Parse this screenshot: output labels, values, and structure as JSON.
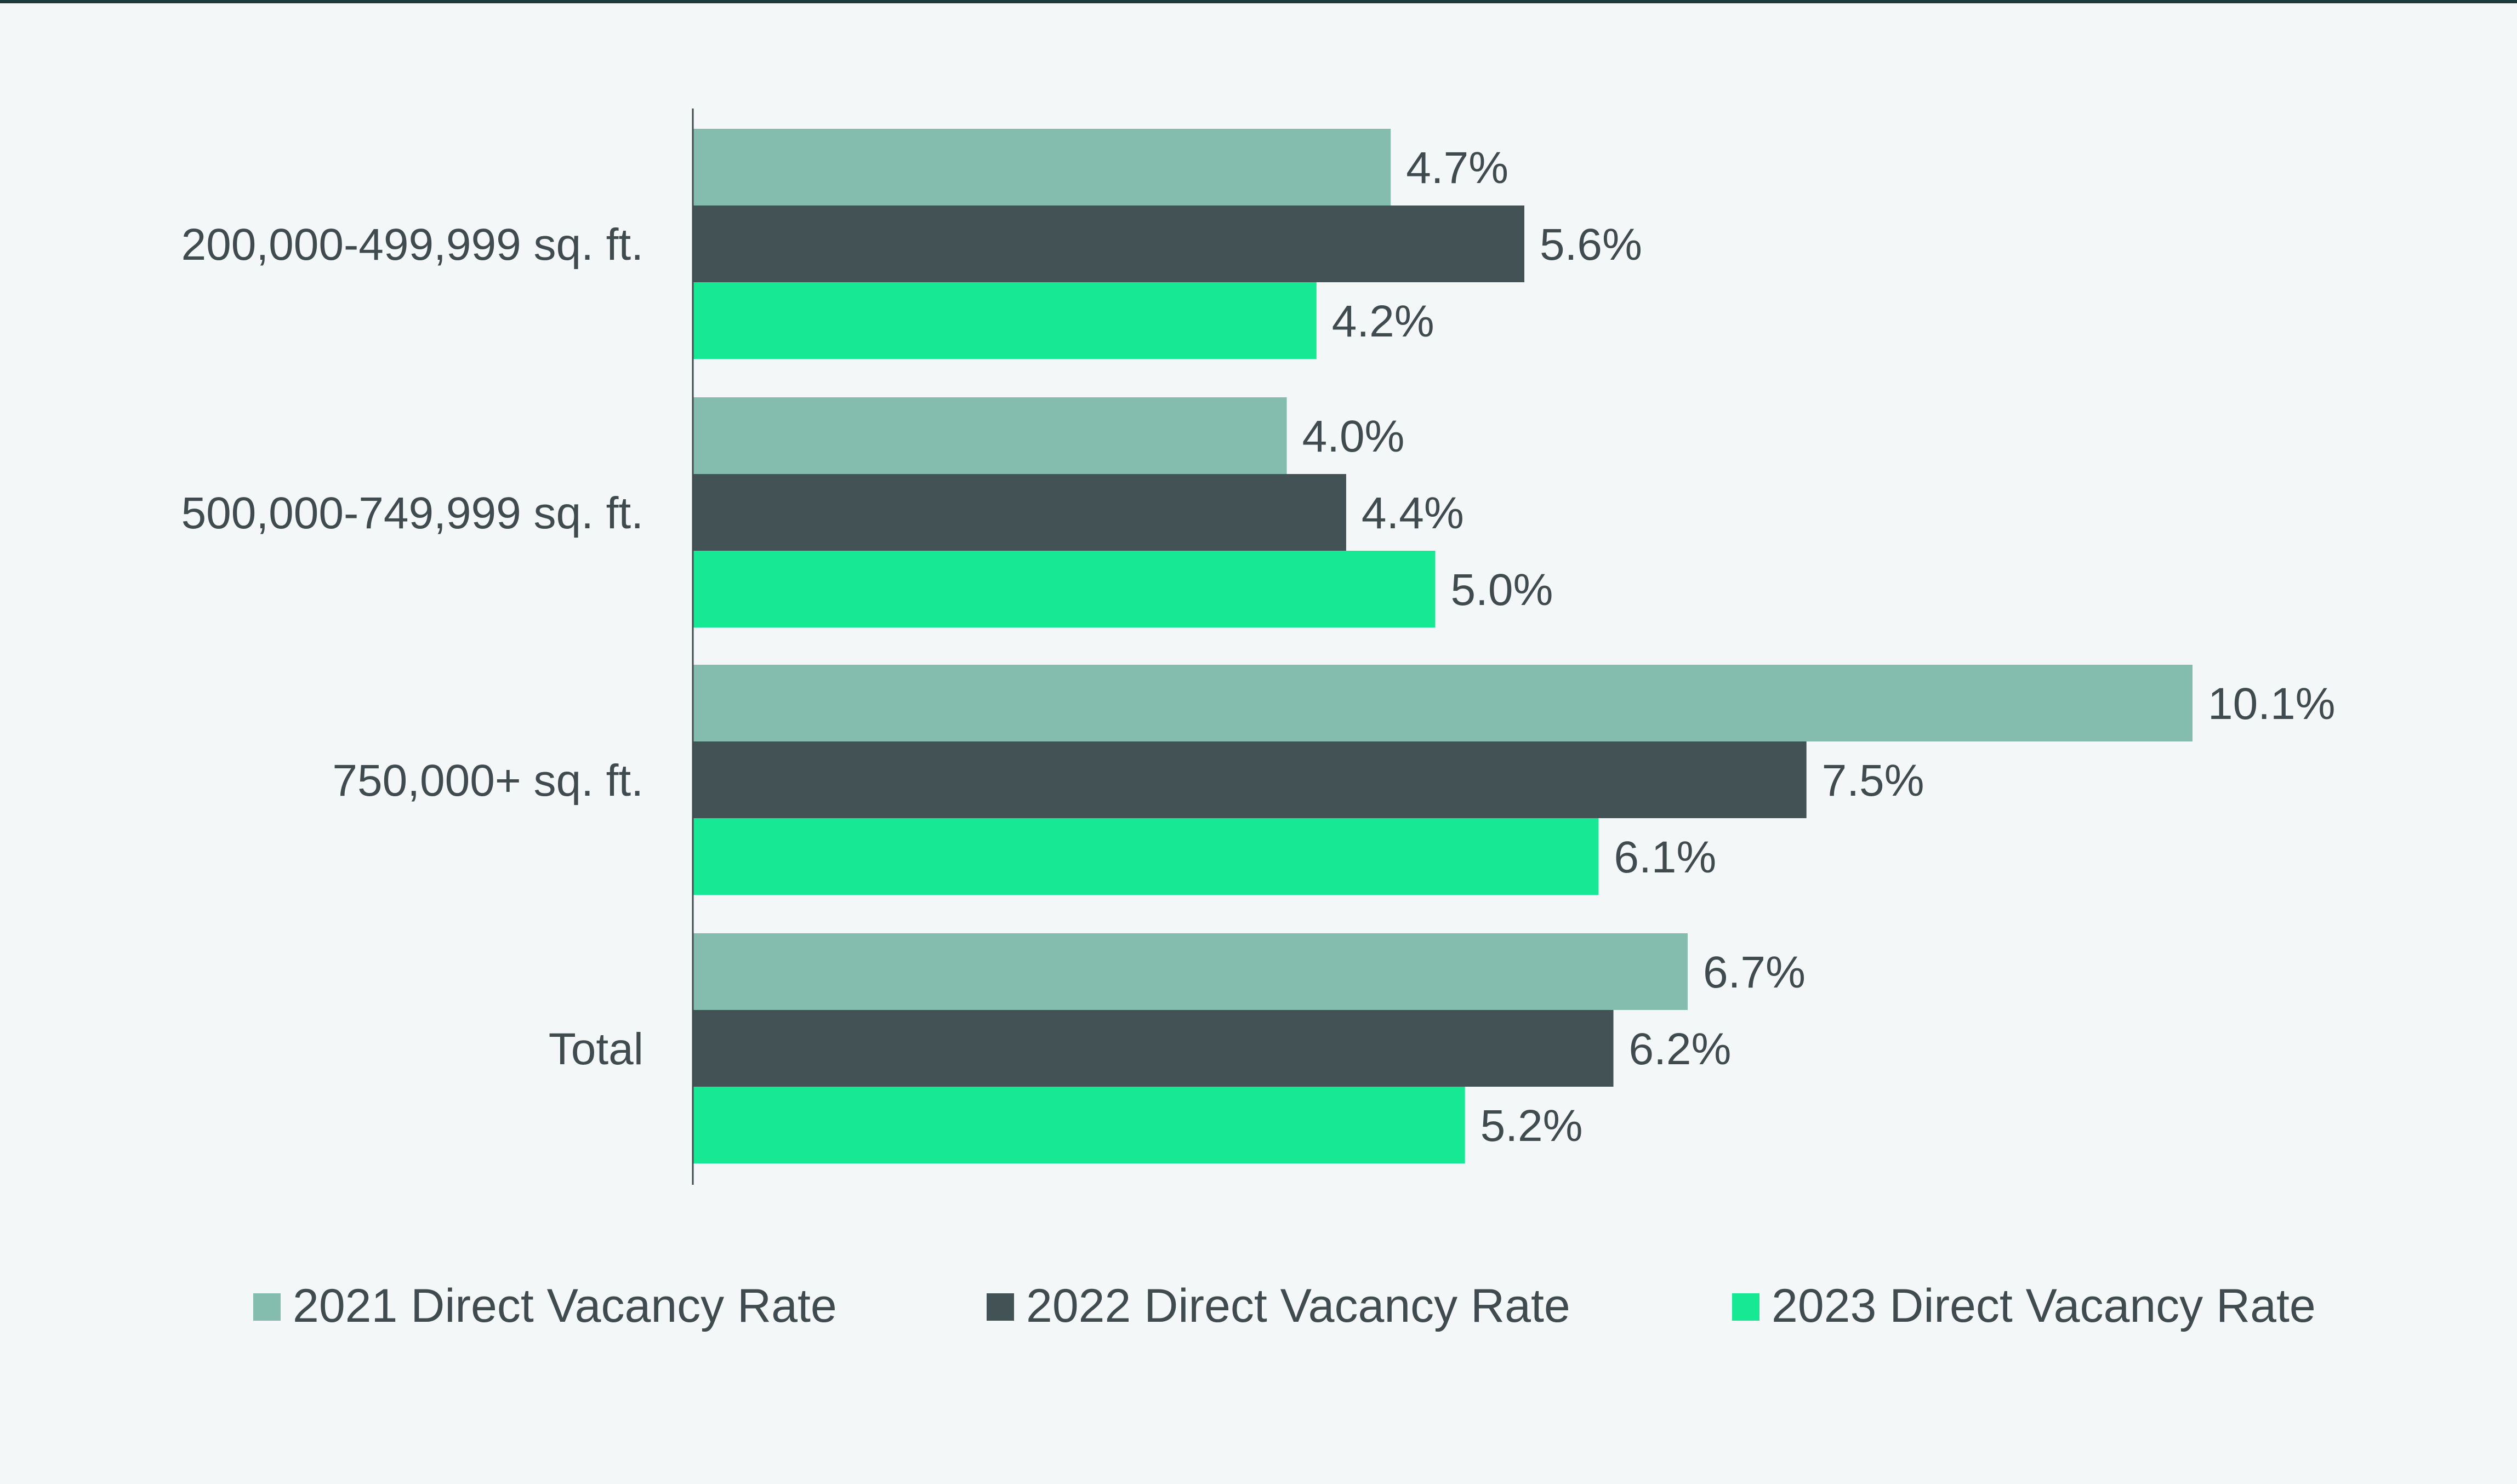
{
  "chart_data": {
    "type": "bar",
    "orientation": "horizontal",
    "categories": [
      "200,000-499,999 sq. ft.",
      "500,000-749,999 sq. ft.",
      "750,000+ sq. ft.",
      "Total"
    ],
    "series": [
      {
        "name": "2021 Direct Vacancy Rate",
        "color": "#84bcad",
        "values": [
          4.7,
          4.0,
          10.1,
          6.7
        ],
        "labels": [
          "4.7%",
          "4.0%",
          "10.1%",
          "6.7%"
        ]
      },
      {
        "name": "2022 Direct Vacancy Rate",
        "color": "#435254",
        "values": [
          5.6,
          4.4,
          7.5,
          6.2
        ],
        "labels": [
          "5.6%",
          "4.4%",
          "7.5%",
          "6.2%"
        ]
      },
      {
        "name": "2023 Direct Vacancy Rate",
        "color": "#17e894",
        "values": [
          4.2,
          5.0,
          6.1,
          5.2
        ],
        "labels": [
          "4.2%",
          "5.0%",
          "6.1%",
          "5.2%"
        ]
      }
    ],
    "title": "",
    "xlabel": "",
    "ylabel": "",
    "xlim": [
      0,
      10.1
    ],
    "grid": false,
    "legend_position": "bottom"
  }
}
